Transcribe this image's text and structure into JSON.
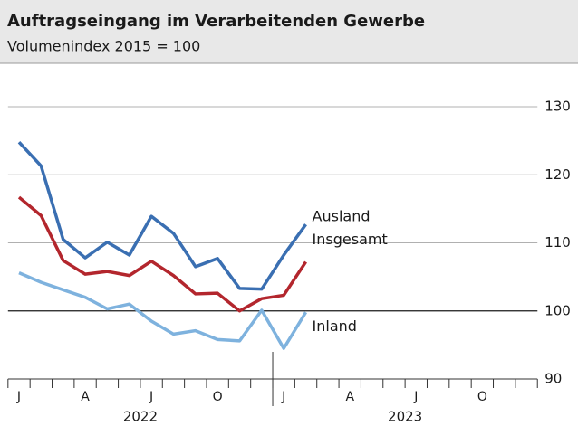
{
  "chart_data": {
    "type": "line",
    "title": "Auftragseingang im Verarbeitenden Gewerbe",
    "subtitle": "Volumenindex 2015 = 100",
    "categories": [
      "J",
      null,
      null,
      "A",
      null,
      null,
      "J",
      null,
      null,
      "O",
      null,
      null,
      "J",
      null,
      null,
      "A",
      null,
      null,
      "J",
      null,
      null,
      "O",
      null,
      null
    ],
    "years": [
      "2022",
      "2023"
    ],
    "series": [
      {
        "name": "Ausland",
        "color": "#3a6fb2",
        "values": [
          124.8,
          121.3,
          110.5,
          107.8,
          110.1,
          108.2,
          113.9,
          111.4,
          106.5,
          107.7,
          103.3,
          103.2,
          108.2,
          112.7,
          null,
          null,
          null,
          null,
          null,
          null,
          null,
          null,
          null,
          null
        ]
      },
      {
        "name": "Insgesamt",
        "color": "#b3262d",
        "values": [
          116.7,
          114.0,
          107.4,
          105.4,
          105.8,
          105.2,
          107.3,
          105.2,
          102.5,
          102.6,
          100.0,
          101.8,
          102.3,
          107.2,
          null,
          null,
          null,
          null,
          null,
          null,
          null,
          null,
          null,
          null
        ]
      },
      {
        "name": "Inland",
        "color": "#7eb2de",
        "values": [
          105.6,
          104.2,
          103.1,
          102.0,
          100.3,
          101.0,
          98.5,
          96.6,
          97.1,
          95.8,
          95.6,
          100.1,
          94.5,
          99.8,
          null,
          null,
          null,
          null,
          null,
          null,
          null,
          null,
          null,
          null
        ]
      }
    ],
    "ylim": [
      90,
      130
    ],
    "yticks": [
      90,
      100,
      110,
      120,
      130
    ],
    "grid": true,
    "reference_line": 100
  }
}
